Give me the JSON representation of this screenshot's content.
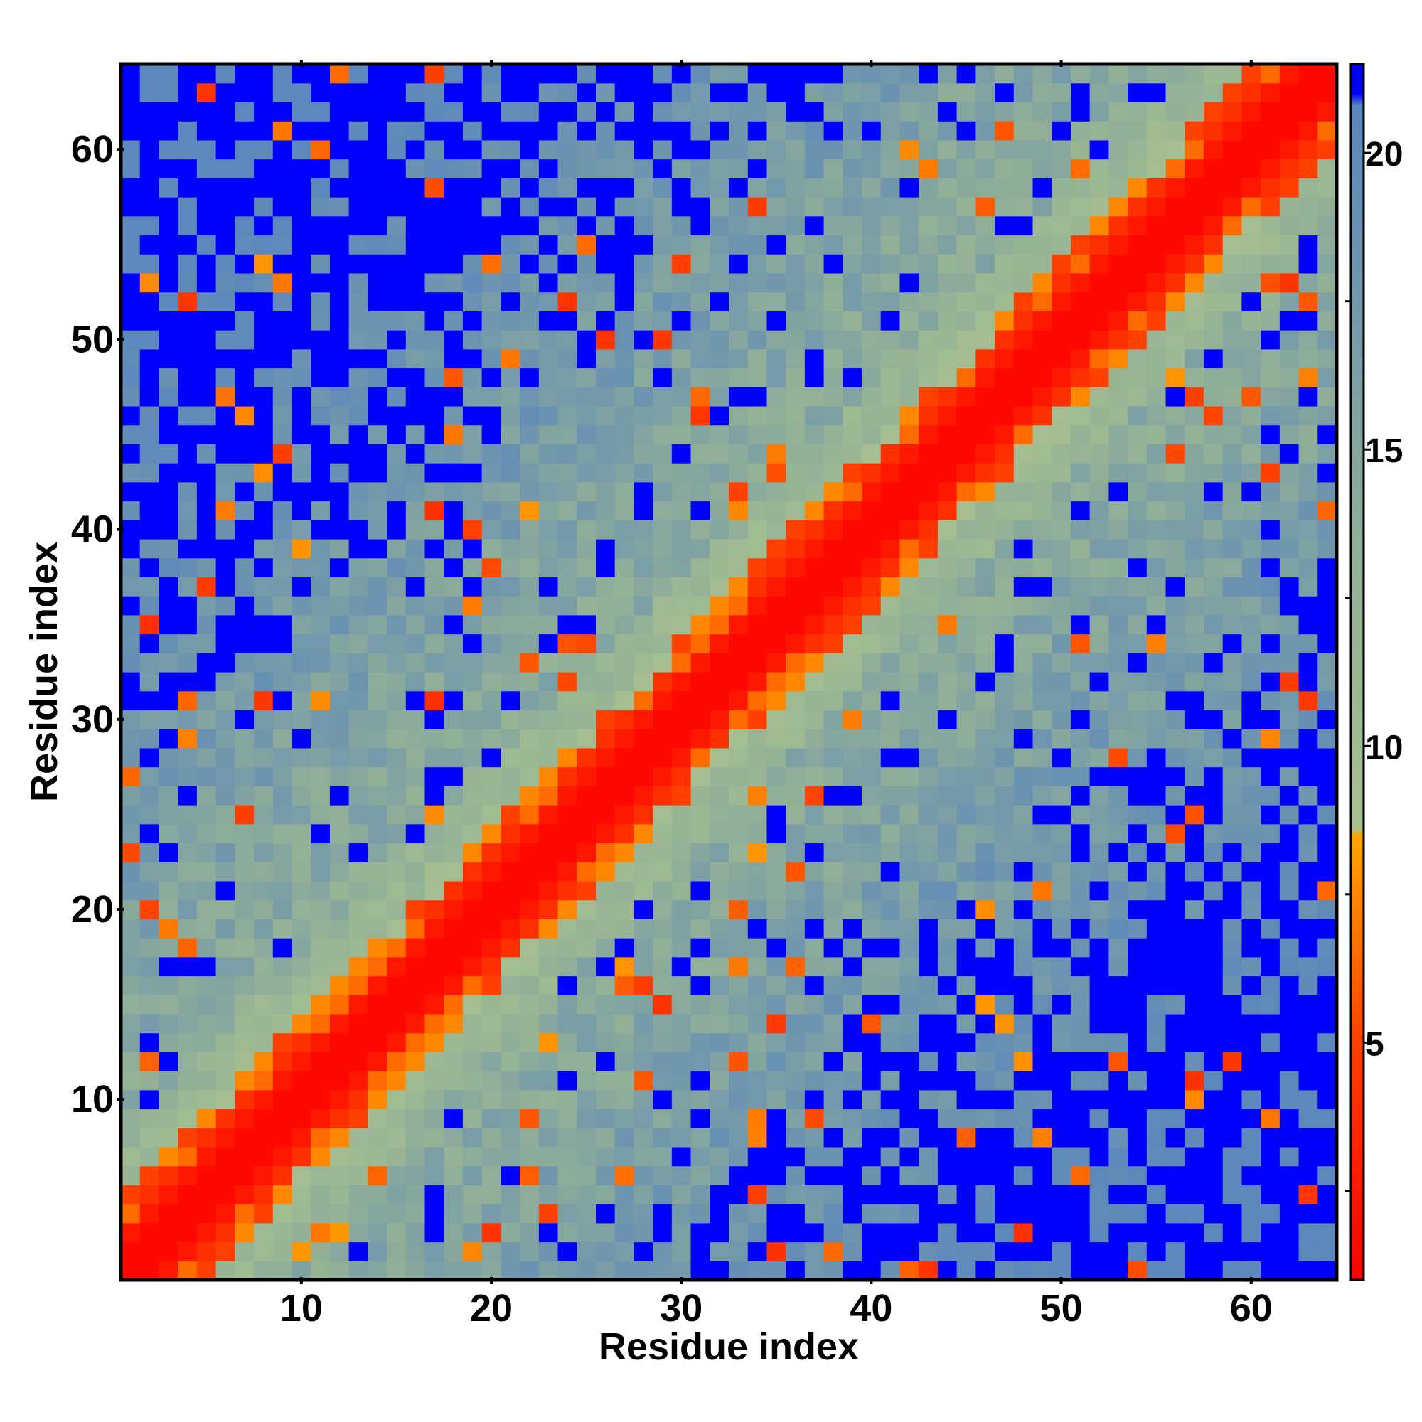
{
  "chart_data": {
    "type": "heatmap",
    "title": "",
    "xlabel": "Residue index",
    "ylabel": "Residue index",
    "n_residues": 64,
    "xlim": [
      0.5,
      64.5
    ],
    "ylim": [
      0.5,
      64.5
    ],
    "x_ticks": [
      10,
      20,
      30,
      40,
      50,
      60
    ],
    "y_ticks": [
      10,
      20,
      30,
      40,
      50,
      60
    ],
    "x_tick_labels": [
      "10",
      "20",
      "30",
      "40",
      "50",
      "60"
    ],
    "y_tick_labels": [
      "10",
      "20",
      "30",
      "40",
      "50",
      "60"
    ],
    "colorbar": {
      "range": [
        1,
        21.5
      ],
      "ticks": [
        5,
        10,
        15,
        20
      ],
      "tick_labels": [
        "5",
        "10",
        "15",
        "20"
      ],
      "stops": [
        {
          "value": 1,
          "color": "#ff0000"
        },
        {
          "value": 5,
          "color": "#ff4000"
        },
        {
          "value": 8.5,
          "color": "#ffa500"
        },
        {
          "value": 8.6,
          "color": "#a8c090"
        },
        {
          "value": 13.5,
          "color": "#90ae98"
        },
        {
          "value": 20.8,
          "color": "#5a86bc"
        },
        {
          "value": 21,
          "color": "#0000ff"
        }
      ]
    },
    "description_matrix": "symmetric residue distance map; value at (i,j) approximated from |i-j| band structure: red near diagonal, orange bands, green-grey mid range, blue for far pairs"
  }
}
